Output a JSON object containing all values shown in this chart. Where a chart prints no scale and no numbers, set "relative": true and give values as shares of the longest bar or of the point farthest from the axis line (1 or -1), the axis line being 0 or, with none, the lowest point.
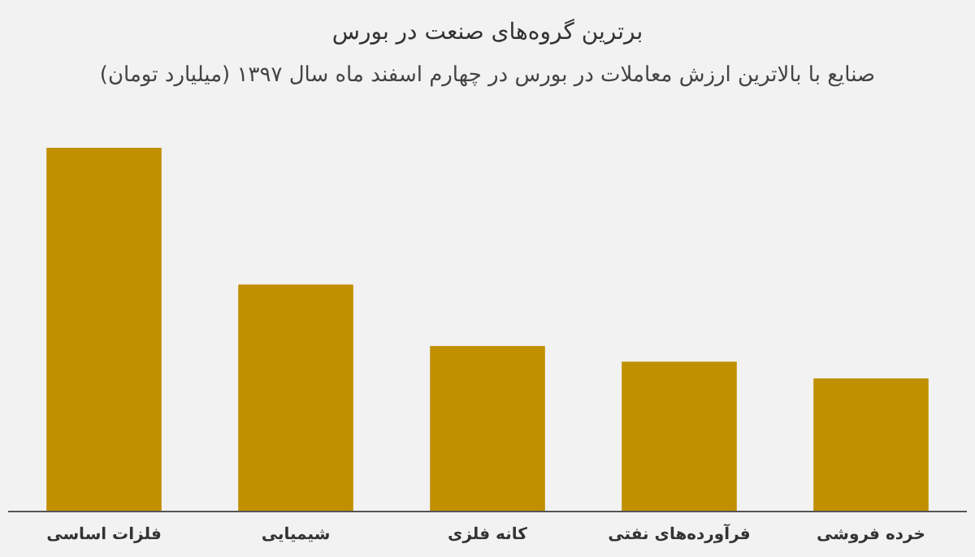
{
  "chart_data": {
    "type": "bar",
    "title": "برترین گروه‌های صنعت در بورس",
    "subtitle": "صنایع با بالاترین ارزش معاملات در بورس در چهارم اسفند ماه سال ۱۳۹۷ (میلیارد تومان)",
    "categories": [
      "فلزات اساسی",
      "شیمیایی",
      "کانه فلزی",
      "فرآورده‌های نفتی",
      "خرده فروشی"
    ],
    "values": [
      1,
      0.624,
      0.455,
      0.412,
      0.366
    ],
    "color": "#c09000",
    "relative": true
  }
}
